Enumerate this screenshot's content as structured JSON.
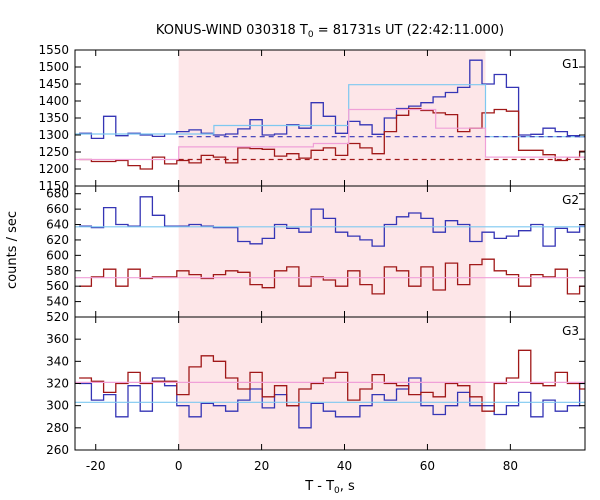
{
  "chart_data": {
    "type": "line",
    "title": "KONUS-WIND 030318 T0 = 81731s UT (22:42:11.000)",
    "title_parts": {
      "pre": "KONUS-WIND 030318 T",
      "sub": "0",
      "post": " = 81731s UT (22:42:11.000)"
    },
    "xlabel_parts": {
      "pre": "T - T",
      "sub": "0",
      "post": ", s"
    },
    "ylabel": "counts / sec",
    "xlim": [
      -25,
      98
    ],
    "xticks": [
      -20,
      0,
      20,
      40,
      60,
      80
    ],
    "xtick_labels": [
      "-20",
      "0",
      "20",
      "40",
      "60",
      "80"
    ],
    "highlight_interval": [
      0,
      74
    ],
    "colors": {
      "blue": "#3535b5",
      "red": "#a01818",
      "cyan": "#7ec8f0",
      "pink": "#f0a0d8",
      "shade": "#fde6e8"
    },
    "panels": [
      {
        "label": "G1",
        "ylim": [
          1150,
          1550
        ],
        "yticks": [
          1150,
          1200,
          1250,
          1300,
          1350,
          1400,
          1450,
          1500,
          1550
        ],
        "ytick_labels": [
          "1150",
          "1200",
          "1250",
          "1300",
          "1350",
          "1400",
          "1450",
          "1500",
          "1550"
        ],
        "series": [
          {
            "color": "blue",
            "x0": -24,
            "step": 2.944,
            "values": [
              1305,
              1290,
              1355,
              1298,
              1305,
              1300,
              1296,
              1303,
              1310,
              1315,
              1305,
              1300,
              1303,
              1318,
              1345,
              1300,
              1303,
              1330,
              1320,
              1395,
              1355,
              1305,
              1340,
              1330,
              1302,
              1350,
              1378,
              1385,
              1395,
              1412,
              1425,
              1440,
              1520,
              1450,
              1478,
              1440,
              1300,
              1302,
              1320,
              1310,
              1298,
              1295,
              1282,
              1302,
              1298,
              1304
            ]
          },
          {
            "color": "red",
            "x0": -24,
            "step": 2.944,
            "values": [
              1228,
              1222,
              1222,
              1225,
              1210,
              1200,
              1235,
              1215,
              1225,
              1218,
              1240,
              1235,
              1218,
              1262,
              1260,
              1258,
              1238,
              1245,
              1232,
              1255,
              1262,
              1240,
              1275,
              1262,
              1245,
              1310,
              1358,
              1378,
              1372,
              1365,
              1360,
              1310,
              1320,
              1365,
              1375,
              1370,
              1255,
              1255,
              1242,
              1225,
              1235,
              1252,
              1262,
              1268,
              1242,
              1240
            ]
          },
          {
            "color": "cyan",
            "style": "step",
            "x": [
              -25,
              8.5,
              8.5,
              41,
              41,
              74,
              74,
              98
            ],
            "values": [
              1303,
              1303,
              1328,
              1328,
              1448,
              1448,
              1295,
              1295
            ]
          },
          {
            "color": "pink",
            "style": "step",
            "x": [
              -25,
              0,
              0,
              32.5,
              32.5,
              41,
              41,
              62,
              62,
              74,
              74,
              98
            ],
            "values": [
              1228,
              1228,
              1265,
              1265,
              1275,
              1275,
              1375,
              1375,
              1320,
              1320,
              1235,
              1235
            ]
          },
          {
            "color": "blue",
            "style": "dashed",
            "x": [
              0,
              98
            ],
            "values": [
              1295,
              1295
            ]
          },
          {
            "color": "red",
            "style": "dashed",
            "x": [
              0,
              98
            ],
            "values": [
              1228,
              1228
            ]
          }
        ]
      },
      {
        "label": "G2",
        "ylim": [
          520,
          690
        ],
        "yticks": [
          520,
          540,
          560,
          580,
          600,
          620,
          640,
          660,
          680
        ],
        "ytick_labels": [
          "520",
          "540",
          "560",
          "580",
          "600",
          "620",
          "640",
          "660",
          "680"
        ],
        "series": [
          {
            "color": "blue",
            "x0": -24,
            "step": 2.944,
            "values": [
              638,
              636,
              662,
              640,
              638,
              676,
              652,
              638,
              638,
              640,
              638,
              636,
              636,
              618,
              615,
              622,
              640,
              635,
              630,
              660,
              648,
              630,
              625,
              620,
              612,
              640,
              650,
              655,
              648,
              630,
              645,
              640,
              618,
              630,
              622,
              625,
              632,
              640,
              612,
              635,
              630,
              638,
              632,
              640,
              640,
              662
            ]
          },
          {
            "color": "red",
            "x0": -24,
            "step": 2.944,
            "values": [
              560,
              572,
              582,
              560,
              582,
              570,
              572,
              572,
              580,
              575,
              570,
              575,
              580,
              578,
              562,
              558,
              580,
              585,
              560,
              572,
              568,
              560,
              580,
              562,
              550,
              585,
              580,
              560,
              585,
              555,
              590,
              562,
              588,
              595,
              580,
              575,
              560,
              575,
              572,
              582,
              550,
              560,
              572,
              565,
              568,
              570
            ]
          },
          {
            "color": "cyan",
            "x": [
              -25,
              98
            ],
            "values": [
              637,
              637
            ]
          },
          {
            "color": "pink",
            "x": [
              -25,
              98
            ],
            "values": [
              571,
              571
            ]
          }
        ]
      },
      {
        "label": "G3",
        "ylim": [
          260,
          380
        ],
        "yticks": [
          260,
          280,
          300,
          320,
          340,
          360
        ],
        "ytick_labels": [
          "260",
          "280",
          "300",
          "320",
          "340",
          "360"
        ],
        "series": [
          {
            "color": "blue",
            "x0": -24,
            "step": 2.944,
            "values": [
              320,
              305,
              310,
              290,
              318,
              295,
              325,
              318,
              300,
              290,
              302,
              300,
              295,
              305,
              315,
              298,
              310,
              300,
              280,
              302,
              295,
              290,
              290,
              300,
              310,
              305,
              315,
              325,
              300,
              292,
              300,
              312,
              300,
              300,
              292,
              300,
              312,
              290,
              305,
              295,
              300,
              320,
              300,
              310,
              285,
              293
            ]
          },
          {
            "color": "red",
            "x0": -24,
            "step": 2.944,
            "values": [
              325,
              322,
              312,
              320,
              330,
              320,
              322,
              322,
              310,
              335,
              345,
              340,
              325,
              315,
              330,
              308,
              318,
              300,
              315,
              320,
              325,
              330,
              305,
              315,
              328,
              320,
              318,
              310,
              312,
              308,
              320,
              318,
              308,
              295,
              320,
              325,
              350,
              320,
              318,
              330,
              320,
              315,
              325,
              325,
              322,
              320
            ]
          },
          {
            "color": "cyan",
            "x": [
              -25,
              98
            ],
            "values": [
              303,
              303
            ]
          },
          {
            "color": "pink",
            "x": [
              -25,
              98
            ],
            "values": [
              321,
              321
            ]
          }
        ]
      }
    ]
  }
}
